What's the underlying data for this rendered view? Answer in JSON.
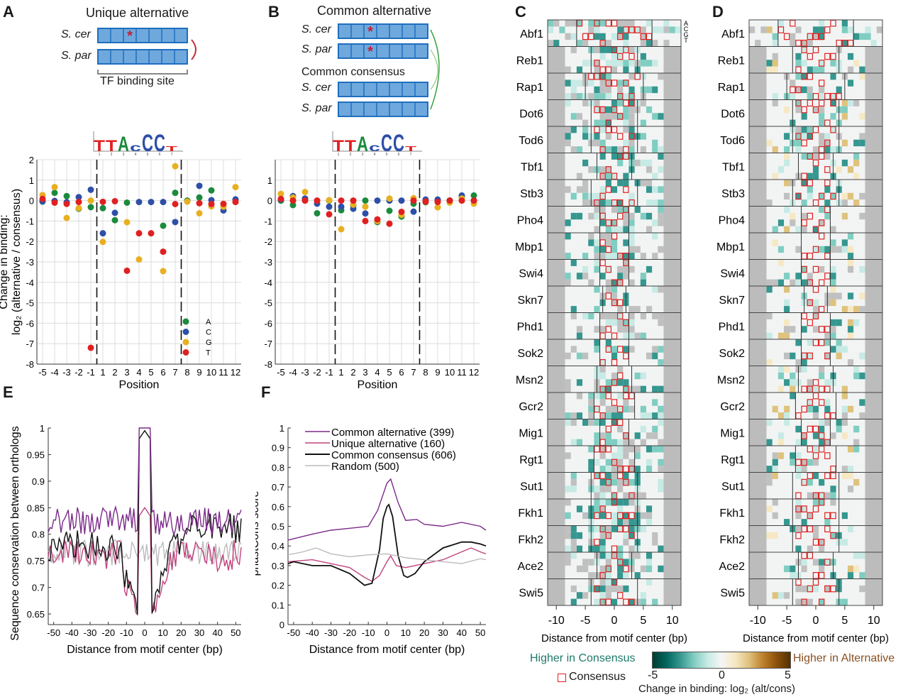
{
  "panels": {
    "A": {
      "letter": "A",
      "title": "Unique alternative",
      "species": [
        "S. cer",
        "S. par"
      ],
      "site_label": "TF binding site",
      "mutation_marker": "*"
    },
    "B": {
      "letter": "B",
      "title": "Common alternative",
      "species": [
        "S. cer",
        "S. par"
      ],
      "consensus_title": "Common consensus",
      "consensus_species": [
        "S. cer",
        "S. par"
      ],
      "mutation_marker": "*"
    },
    "C": {
      "letter": "C"
    },
    "D": {
      "letter": "D"
    },
    "E": {
      "letter": "E"
    },
    "F": {
      "letter": "F"
    }
  },
  "motif_logo": {
    "letters": [
      "T",
      "T",
      "A",
      "c",
      "C",
      "C",
      "T"
    ],
    "positions": [
      "1",
      "2",
      "3",
      "4",
      "5",
      "6",
      "7"
    ]
  },
  "colors": {
    "A": "#1b8a3c",
    "C": "#2e4fa8",
    "G": "#e8b020",
    "T": "#e02020",
    "box_fill": "#6fa8dc",
    "box_stroke": "#1f6fbf",
    "asterisk": "#c0203a",
    "common_alt": "#7b2a8a",
    "unique_alt": "#c2427e",
    "common_cons": "#111111",
    "random": "#bbbbbb",
    "higher_consensus": "#1e7a6a",
    "higher_alternative": "#8a5020",
    "consensus_box": "#e02020"
  },
  "chart_data": [
    {
      "id": "A",
      "type": "scatter",
      "title": "Unique alternative",
      "xlabel": "Position",
      "ylabel": "Change in binding: log₂ (alternative / consensus)",
      "x_ticks": [
        "-5",
        "-4",
        "-3",
        "-2",
        "-1",
        "1",
        "2",
        "3",
        "4",
        "5",
        "6",
        "7",
        "8",
        "9",
        "10",
        "11",
        "12"
      ],
      "ylim": [
        -8,
        2
      ],
      "y_ticks": [
        "2",
        "1",
        "0",
        "-1",
        "-2",
        "-3",
        "-4",
        "-5",
        "-6",
        "-7",
        "-8"
      ],
      "grid": true,
      "legend": {
        "placement": "bottom-right",
        "entries": [
          "A",
          "C",
          "G",
          "T"
        ]
      },
      "motif_bounds": [
        "-1|1",
        "7|8"
      ],
      "series": [
        {
          "name": "A",
          "values": [
            -0.05,
            0.38,
            0.22,
            -0.4,
            -0.32,
            -0.37,
            -0.96,
            -0.1,
            null,
            null,
            -1.23,
            0.38,
            0.0,
            0.15,
            0.5,
            null,
            null
          ]
        },
        {
          "name": "C",
          "values": [
            -0.03,
            -0.02,
            -0.08,
            0.17,
            0.53,
            -1.6,
            -0.6,
            null,
            -0.07,
            -0.07,
            -0.07,
            -1.05,
            null,
            0.72,
            0.02,
            -0.48,
            0.06
          ]
        },
        {
          "name": "G",
          "values": [
            0.27,
            0.66,
            -0.85,
            -0.37,
            0.0,
            -2.02,
            null,
            -1.06,
            -2.88,
            null,
            -3.45,
            1.68,
            -0.05,
            -0.62,
            -0.28,
            -0.3,
            0.66
          ]
        },
        {
          "name": "T",
          "values": [
            0.08,
            -0.1,
            -0.16,
            -0.07,
            -7.2,
            -0.06,
            -0.03,
            -3.43,
            -1.6,
            -1.6,
            -2.5,
            -0.17,
            null,
            -0.13,
            -0.17,
            -0.16,
            -0.07
          ]
        }
      ]
    },
    {
      "id": "B",
      "type": "scatter",
      "title": "Common alternative",
      "xlabel": "Position",
      "ylabel": "",
      "x_ticks": [
        "-5",
        "-4",
        "-3",
        "-2",
        "-1",
        "1",
        "2",
        "3",
        "4",
        "5",
        "6",
        "7",
        "8",
        "9",
        "10",
        "11",
        "12"
      ],
      "ylim": [
        -8,
        2
      ],
      "y_ticks": [
        "",
        "1",
        "0",
        "-1",
        "-2",
        "-3",
        "-4",
        "-5",
        "-6",
        "-7",
        "-8"
      ],
      "grid": true,
      "motif_bounds": [
        "-1|1",
        "7|8"
      ],
      "series": [
        {
          "name": "A",
          "values": [
            0.0,
            -0.22,
            0.05,
            -0.62,
            0.0,
            -0.47,
            -0.25,
            0.0,
            -1.05,
            -0.5,
            -0.78,
            -0.15,
            -0.08,
            0.0,
            0.0,
            0.2,
            0.25
          ]
        },
        {
          "name": "C",
          "values": [
            0.05,
            0.22,
            0.1,
            -0.15,
            -0.3,
            -0.3,
            -0.4,
            -0.63,
            0.0,
            0.0,
            0.0,
            -0.54,
            0.05,
            0.05,
            0.0,
            0.25,
            0.0
          ]
        },
        {
          "name": "G",
          "values": [
            0.33,
            0.15,
            0.42,
            0.0,
            0.02,
            -1.4,
            -0.2,
            -0.3,
            -1.0,
            0.1,
            -0.7,
            0.12,
            -0.05,
            -0.33,
            -0.1,
            0.1,
            -0.15
          ]
        },
        {
          "name": "T",
          "values": [
            0.08,
            0.0,
            0.0,
            0.0,
            -0.67,
            0.0,
            0.0,
            -1.0,
            -0.92,
            -1.13,
            -0.55,
            0.0,
            -0.05,
            -0.07,
            0.0,
            0.0,
            0.0
          ]
        }
      ]
    },
    {
      "id": "C",
      "type": "heatmap",
      "xlabel": "Distance from motif center (bp)",
      "x_ticks": [
        "-10",
        "-5",
        "0",
        "5",
        "10"
      ],
      "xlim": [
        -11.5,
        11.5
      ],
      "row_labels": [
        "Abf1",
        "Reb1",
        "Rap1",
        "Dot6",
        "Tod6",
        "Tbf1",
        "Stb3",
        "Pho4",
        "Mbp1",
        "Swi4",
        "Skn7",
        "Phd1",
        "Sok2",
        "Msn2",
        "Gcr2",
        "Mig1",
        "Rgt1",
        "Sut1",
        "Fkh1",
        "Fkh2",
        "Ace2",
        "Swi5"
      ],
      "base_labels": [
        "A",
        "C",
        "G",
        "T"
      ],
      "motif_halfwidth": [
        6,
        3.5,
        4.5,
        3.5,
        3.5,
        2.5,
        3.5,
        2,
        2,
        2,
        1.5,
        2,
        2,
        2.5,
        3,
        2,
        3,
        3.5,
        3.5,
        3.5,
        2.5,
        3.5
      ],
      "colorbar": {
        "min": -5,
        "max": 5,
        "ticks": [
          "-5",
          "0",
          "5"
        ]
      }
    },
    {
      "id": "D",
      "type": "heatmap",
      "xlabel": "Distance from motif center (bp)",
      "x_ticks": [
        "-10",
        "-5",
        "0",
        "5",
        "10"
      ],
      "xlim": [
        -11.5,
        11.5
      ],
      "row_labels": [
        "Abf1",
        "Reb1",
        "Rap1",
        "Dot6",
        "Tod6",
        "Tbf1",
        "Stb3",
        "Pho4",
        "Mbp1",
        "Swi4",
        "Skn7",
        "Phd1",
        "Sok2",
        "Msn2",
        "Gcr2",
        "Mig1",
        "Rgt1",
        "Sut1",
        "Fkh1",
        "Fkh2",
        "Ace2",
        "Swi5"
      ],
      "motif_halfwidth": [
        6,
        3.5,
        4.5,
        3.5,
        3.5,
        2.5,
        3.5,
        2,
        2,
        2,
        1.5,
        2,
        2,
        2.5,
        3,
        2,
        3,
        3.5,
        3.5,
        3.5,
        2.5,
        3.5
      ]
    },
    {
      "id": "E",
      "type": "line",
      "xlabel": "Distance from motif center (bp)",
      "ylabel": "Sequence conservation between orthologs",
      "x_ticks": [
        "-50",
        "-40",
        "-30",
        "-20",
        "-10",
        "0",
        "10",
        "20",
        "30",
        "40",
        "50"
      ],
      "xlim": [
        -53,
        53
      ],
      "ylim": [
        0.63,
        1.0
      ],
      "y_ticks": [
        "1",
        "0.95",
        "0.9",
        "0.85",
        "0.8",
        "0.75",
        "0.7",
        "0.65"
      ],
      "series": [
        {
          "name": "Common alternative",
          "profile": "noisy_high",
          "base": 0.825,
          "peak": 1.0
        },
        {
          "name": "Unique alternative",
          "profile": "noisy_dip",
          "base": 0.76,
          "peak": 0.85,
          "dip": 0.63
        },
        {
          "name": "Common consensus",
          "profile": "noisy_dip",
          "base": 0.78,
          "peak": 0.995,
          "dip": 0.645
        },
        {
          "name": "Random",
          "profile": "noisy_flat",
          "base": 0.765
        }
      ]
    },
    {
      "id": "F",
      "type": "line",
      "xlabel": "Distance from motif center (bp)",
      "ylabel": "phastCons score",
      "x_ticks": [
        "-50",
        "-40",
        "-30",
        "-20",
        "-10",
        "0",
        "10",
        "20",
        "30",
        "40",
        "50"
      ],
      "xlim": [
        -53,
        53
      ],
      "ylim": [
        0,
        1
      ],
      "y_ticks": [
        "1",
        "0.9",
        "0.8",
        "0.7",
        "0.6",
        "0.5",
        "0.4",
        "0.3",
        "0.2",
        "0.1",
        "0"
      ],
      "legend": {
        "placement": "top",
        "entries": [
          "Common alternative (399)",
          "Unique alternative (160)",
          "Common consensus (606)",
          "Random (500)"
        ]
      },
      "series": [
        {
          "name": "Common alternative (399)",
          "x": [
            -53,
            -40,
            -30,
            -20,
            -10,
            -5,
            0,
            2,
            6,
            10,
            16,
            20,
            30,
            40,
            50,
            53
          ],
          "y": [
            0.43,
            0.46,
            0.48,
            0.49,
            0.5,
            0.58,
            0.72,
            0.74,
            0.62,
            0.53,
            0.535,
            0.51,
            0.5,
            0.52,
            0.5,
            0.48
          ]
        },
        {
          "name": "Unique alternative (160)",
          "x": [
            -53,
            -40,
            -30,
            -20,
            -12,
            -8,
            -4,
            0,
            2,
            5,
            10,
            20,
            30,
            40,
            45,
            50,
            53
          ],
          "y": [
            0.32,
            0.33,
            0.31,
            0.29,
            0.24,
            0.22,
            0.25,
            0.32,
            0.35,
            0.3,
            0.29,
            0.31,
            0.33,
            0.37,
            0.39,
            0.37,
            0.36
          ]
        },
        {
          "name": "Common consensus (606)",
          "x": [
            -53,
            -50,
            -40,
            -30,
            -20,
            -12,
            -8,
            -4,
            -2,
            0,
            1,
            3,
            6,
            9,
            11,
            15,
            20,
            30,
            40,
            45,
            50,
            53
          ],
          "y": [
            0.31,
            0.32,
            0.3,
            0.3,
            0.26,
            0.2,
            0.21,
            0.38,
            0.54,
            0.6,
            0.61,
            0.55,
            0.35,
            0.25,
            0.24,
            0.26,
            0.32,
            0.39,
            0.42,
            0.42,
            0.41,
            0.4
          ]
        },
        {
          "name": "Random (500)",
          "x": [
            -53,
            -45,
            -38,
            -30,
            -20,
            -10,
            0,
            10,
            20,
            30,
            40,
            50,
            53
          ],
          "y": [
            0.355,
            0.37,
            0.39,
            0.36,
            0.345,
            0.355,
            0.36,
            0.34,
            0.33,
            0.32,
            0.31,
            0.335,
            0.33
          ]
        }
      ]
    }
  ],
  "heatmap_legend": {
    "higher_consensus": "Higher in Consensus",
    "higher_alternative": "Higher in Alternative",
    "consensus_box_label": "Consensus",
    "colorbar_ticks": [
      "-5",
      "0",
      "5"
    ],
    "colorbar_title": "Change in binding: log₂ (alt/cons)"
  }
}
